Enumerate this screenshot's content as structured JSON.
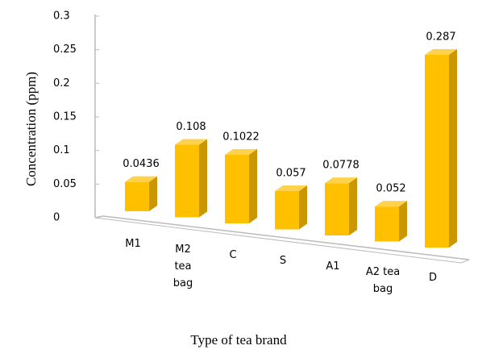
{
  "chart_data": {
    "type": "bar3d",
    "x_label": "Type of tea brand",
    "y_label": "Concentration (ppm)",
    "categories": [
      "M1",
      "M2\ntea\nbag",
      "C",
      "S",
      "A1",
      "A2 tea\nbag",
      "D"
    ],
    "values": [
      0.0436,
      0.108,
      0.1022,
      0.057,
      0.0778,
      0.052,
      0.287
    ],
    "color": "#ffc000",
    "ylim": [
      0,
      0.3
    ],
    "yticks": [
      0,
      0.05,
      0.1,
      0.15,
      0.2,
      0.25,
      0.3
    ]
  }
}
